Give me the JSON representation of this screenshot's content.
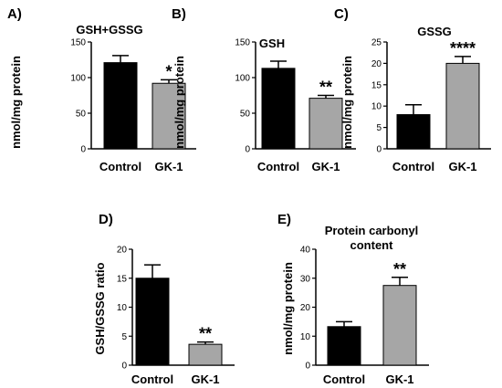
{
  "chart_data": [
    {
      "panel": "A)",
      "type": "bar",
      "title": "GSH+GSSG",
      "title_lines": [
        "GSH+GSSG"
      ],
      "ylabel": "nmol/mg protein",
      "xlabel": "",
      "categories": [
        "Control",
        "GK-1"
      ],
      "values": [
        121,
        92
      ],
      "errors": [
        10,
        5
      ],
      "significance": [
        "",
        "*"
      ],
      "ylim": [
        0,
        150
      ],
      "yticks": [
        0,
        50,
        100,
        150
      ],
      "bar_colors": [
        "#000000",
        "#a6a6a6"
      ]
    },
    {
      "panel": "B)",
      "type": "bar",
      "title": "GSH",
      "title_lines": [
        "GSH"
      ],
      "ylabel": "nmol/mg protein",
      "xlabel": "",
      "categories": [
        "Control",
        "GK-1"
      ],
      "values": [
        113,
        71
      ],
      "errors": [
        10,
        4
      ],
      "significance": [
        "",
        "**"
      ],
      "ylim": [
        0,
        150
      ],
      "yticks": [
        0,
        50,
        100,
        150
      ],
      "bar_colors": [
        "#000000",
        "#a6a6a6"
      ]
    },
    {
      "panel": "C)",
      "type": "bar",
      "title": "GSSG",
      "title_lines": [
        "GSSG"
      ],
      "ylabel": "nmol/mg protein",
      "xlabel": "",
      "categories": [
        "Control",
        "GK-1"
      ],
      "values": [
        8.0,
        20.0
      ],
      "errors": [
        2.3,
        1.6
      ],
      "significance": [
        "",
        "****"
      ],
      "ylim": [
        0,
        25
      ],
      "yticks": [
        0,
        5,
        10,
        15,
        20,
        25
      ],
      "bar_colors": [
        "#000000",
        "#a6a6a6"
      ]
    },
    {
      "panel": "D)",
      "type": "bar",
      "title": "",
      "title_lines": [],
      "ylabel": "GSH/GSSG ratio",
      "xlabel": "",
      "categories": [
        "Control",
        "GK-1"
      ],
      "values": [
        15.0,
        3.6
      ],
      "errors": [
        2.3,
        0.4
      ],
      "significance": [
        "",
        "**"
      ],
      "ylim": [
        0,
        20
      ],
      "yticks": [
        0,
        5,
        10,
        15,
        20
      ],
      "bar_colors": [
        "#000000",
        "#a6a6a6"
      ]
    },
    {
      "panel": "E)",
      "type": "bar",
      "title": "Protein carbonyl content",
      "title_lines": [
        "Protein carbonyl",
        "content"
      ],
      "ylabel": "nmol/mg protein",
      "xlabel": "",
      "categories": [
        "Control",
        "GK-1"
      ],
      "values": [
        13.3,
        27.5
      ],
      "errors": [
        1.7,
        2.8
      ],
      "significance": [
        "",
        "**"
      ],
      "ylim": [
        0,
        40
      ],
      "yticks": [
        0,
        10,
        20,
        30,
        40
      ],
      "bar_colors": [
        "#000000",
        "#a6a6a6"
      ]
    }
  ]
}
